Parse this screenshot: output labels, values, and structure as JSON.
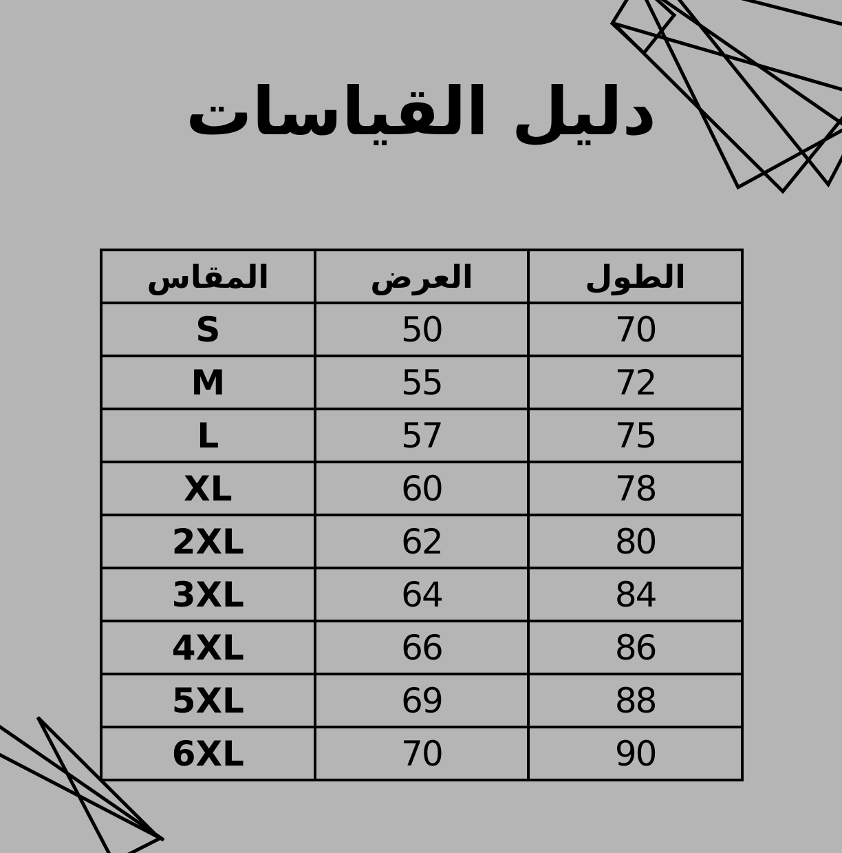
{
  "title": "دليل القياسات",
  "table": {
    "headers": [
      {
        "key": "size",
        "label": "المقاس"
      },
      {
        "key": "width",
        "label": "العرض"
      },
      {
        "key": "length",
        "label": "الطول"
      }
    ],
    "rows": [
      {
        "size": "S",
        "width": "50",
        "length": "70"
      },
      {
        "size": "M",
        "width": "55",
        "length": "72"
      },
      {
        "size": "L",
        "width": "57",
        "length": "75"
      },
      {
        "size": "XL",
        "width": "60",
        "length": "78"
      },
      {
        "size": "2XL",
        "width": "62",
        "length": "80"
      },
      {
        "size": "3XL",
        "width": "64",
        "length": "84"
      },
      {
        "size": "4XL",
        "width": "66",
        "length": "86"
      },
      {
        "size": "5XL",
        "width": "69",
        "length": "88"
      },
      {
        "size": "6XL",
        "width": "70",
        "length": "90"
      }
    ]
  },
  "decorations": {
    "top_right": "crossing-triangle-lines",
    "bottom_left": "crossing-triangle-lines"
  },
  "colors": {
    "background": "#b5b5b5",
    "line": "#000000",
    "text": "#000000"
  }
}
